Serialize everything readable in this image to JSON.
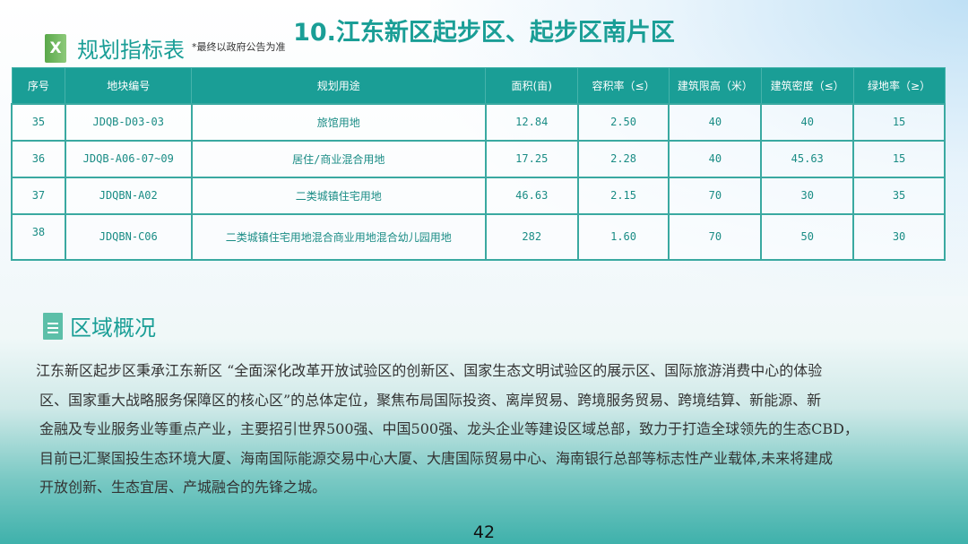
{
  "title": "10.江东新区起步区、起步区南片区",
  "section1": {
    "icon": "excel-icon",
    "title": "规划指标表",
    "note": "*最终以政府公告为准"
  },
  "table": {
    "headers": [
      "序号",
      "地块编号",
      "规划用途",
      "面积(亩)",
      "容积率（≤）",
      "建筑限高（米）",
      "建筑密度（≤）",
      "绿地率（≥）"
    ],
    "rows": [
      [
        "35",
        "JDQB-D03-03",
        "旅馆用地",
        "12.84",
        "2.50",
        "40",
        "40",
        "15"
      ],
      [
        "36",
        "JDQB-A06-07~09",
        "居住/商业混合用地",
        "17.25",
        "2.28",
        "40",
        "45.63",
        "15"
      ],
      [
        "37",
        "JDQBN-A02",
        "二类城镇住宅用地",
        "46.63",
        "2.15",
        "70",
        "30",
        "35"
      ],
      [
        "38",
        "JDQBN-C06",
        "二类城镇住宅用地混合商业用地混合幼儿园用地",
        "282",
        "1.60",
        "70",
        "50",
        "30"
      ]
    ]
  },
  "section2": {
    "icon": "document-icon",
    "title": "区域概况"
  },
  "paragraph": [
    "江东新区起步区秉承江东新区 “全面深化改革开放试验区的创新区、国家生态文明试验区的展示区、国际旅游消费中心的体验",
    "区、国家重大战略服务保障区的核心区”的总体定位，聚焦布局国际投资、离岸贸易、跨境服务贸易、跨境结算、新能源、新",
    "金融及专业服务业等重点产业，主要招引世界500强、中国500强、龙头企业等建设区域总部，致力于打造全球领先的生态CBD，",
    "目前已汇聚国投生态环境大厦、海南国际能源交易中心大厦、大唐国际贸易中心、海南银行总部等标志性产业载体,未来将建成",
    "开放创新、生态宜居、产城融合的先锋之城。"
  ],
  "page_number": "42"
}
